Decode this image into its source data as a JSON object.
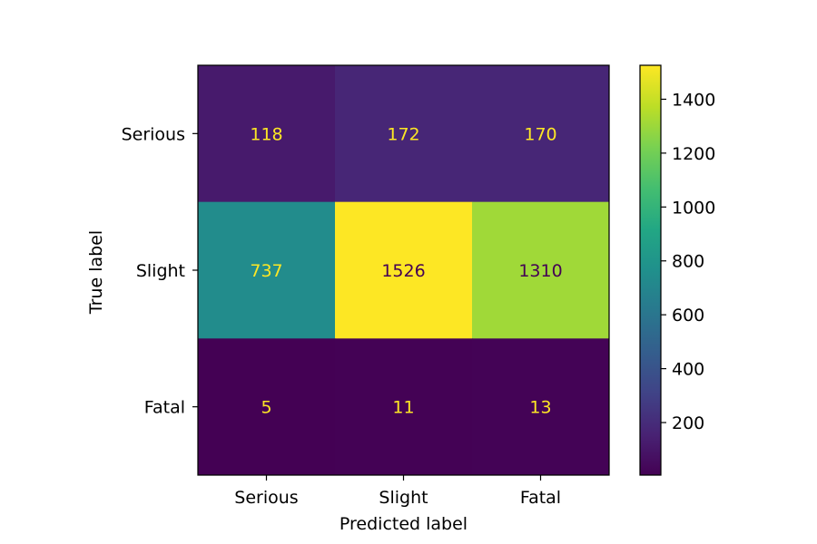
{
  "chart_data": {
    "type": "heatmap",
    "title": "",
    "xlabel": "Predicted label",
    "ylabel": "True label",
    "x_categories": [
      "Serious",
      "Slight",
      "Fatal"
    ],
    "y_categories": [
      "Serious",
      "Slight",
      "Fatal"
    ],
    "matrix": [
      [
        118,
        172,
        170
      ],
      [
        737,
        1526,
        1310
      ],
      [
        5,
        11,
        13
      ]
    ],
    "colormap": "viridis",
    "color_range": [
      5,
      1526
    ],
    "colorbar_ticks": [
      200,
      400,
      600,
      800,
      1000,
      1200,
      1400
    ],
    "cell_text_colors": {
      "on_dark": "#fde725",
      "on_light": "#440154"
    },
    "grid": false,
    "legend": "colorbar-right"
  }
}
